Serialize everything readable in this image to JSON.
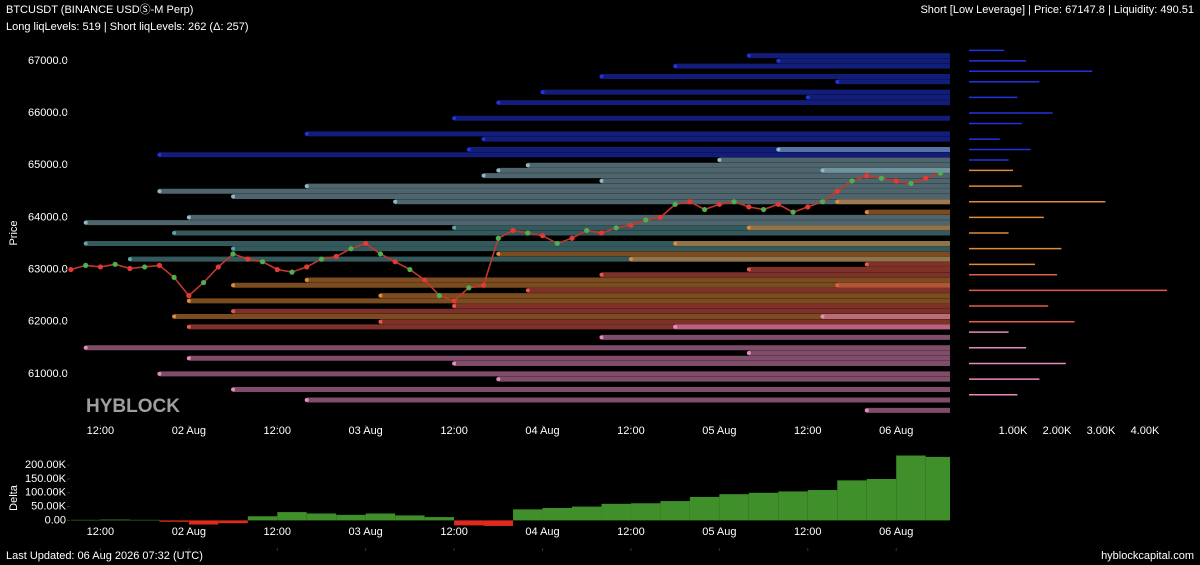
{
  "header": {
    "title": "BTCUSDT (BINANCE USDⓈ-M Perp)",
    "levels": "Long liqLevels: 519 | Short liqLevels: 262 (Δ: 257)",
    "status": "Short [Low Leverage] | Price: 67147.8 | Liquidity: 490.51"
  },
  "watermark": "HYBLOCK",
  "footer": {
    "updated": "Last Updated: 06 Aug 2026 07:32 (UTC)",
    "site": "hyblockcapital.com"
  },
  "chart_data": [
    {
      "type": "line",
      "y_label": "Price",
      "color": "#c0392b",
      "xlim": [
        7.6,
        127.3
      ],
      "ylim": [
        60020,
        67400
      ],
      "xticks": [
        {
          "value": 12,
          "label": "12:00"
        },
        {
          "value": 24,
          "label": "02 Aug"
        },
        {
          "value": 36,
          "label": "12:00"
        },
        {
          "value": 48,
          "label": "03 Aug"
        },
        {
          "value": 60,
          "label": "12:00"
        },
        {
          "value": 72,
          "label": "04 Aug"
        },
        {
          "value": 84,
          "label": "12:00"
        },
        {
          "value": 96,
          "label": "05 Aug"
        },
        {
          "value": 108,
          "label": "12:00"
        },
        {
          "value": 120,
          "label": "06 Aug"
        }
      ],
      "yticks": [
        {
          "value": 61000,
          "label": "61000.0"
        },
        {
          "value": 62000,
          "label": "62000.0"
        },
        {
          "value": 63000,
          "label": "63000.0"
        },
        {
          "value": 64000,
          "label": "64000.0"
        },
        {
          "value": 65000,
          "label": "65000.0"
        },
        {
          "value": 66000,
          "label": "66000.0"
        },
        {
          "value": 67000,
          "label": "67000.0"
        }
      ],
      "x": [
        8,
        10,
        12,
        14,
        16,
        18,
        20,
        22,
        24,
        26,
        28,
        30,
        32,
        34,
        36,
        38,
        40,
        42,
        44,
        46,
        48,
        50,
        52,
        54,
        56,
        58,
        60,
        62,
        64,
        66,
        68,
        70,
        72,
        74,
        76,
        78,
        80,
        82,
        84,
        86,
        88,
        90,
        92,
        94,
        96,
        98,
        100,
        102,
        104,
        106,
        108,
        110,
        112,
        114,
        116,
        118,
        120,
        122,
        124,
        126
      ],
      "values": [
        63000,
        63080,
        63050,
        63100,
        63020,
        63050,
        63080,
        62850,
        62500,
        62750,
        63050,
        63300,
        63200,
        63150,
        63000,
        62950,
        63050,
        63200,
        63250,
        63400,
        63500,
        63300,
        63150,
        63000,
        62800,
        62500,
        62400,
        62650,
        62700,
        63600,
        63750,
        63700,
        63650,
        63500,
        63600,
        63750,
        63700,
        63800,
        63850,
        63950,
        64000,
        64250,
        64300,
        64150,
        64250,
        64300,
        64200,
        64150,
        64250,
        64100,
        64200,
        64300,
        64500,
        64700,
        64800,
        64750,
        64700,
        64650,
        64750,
        64850
      ],
      "liq_levels": [
        {
          "color": "#2233dd",
          "start": [
            20,
            40,
            60,
            62,
            64,
            66,
            72,
            80,
            90,
            100,
            104,
            108,
            112
          ],
          "price": [
            65200,
            65600,
            65900,
            65300,
            65500,
            66200,
            66400,
            66700,
            66900,
            67100,
            67000,
            66300,
            66600
          ]
        },
        {
          "color": "#8fb8c8",
          "start": [
            10,
            20,
            24,
            30,
            40,
            52,
            64,
            66,
            70,
            80,
            96,
            104,
            110
          ],
          "price": [
            63900,
            64500,
            64000,
            64400,
            64600,
            64300,
            64800,
            64900,
            65000,
            64700,
            65100,
            65300,
            64900
          ]
        },
        {
          "color": "#5fa3a8",
          "start": [
            10,
            16,
            22,
            30,
            60
          ],
          "price": [
            63500,
            63200,
            63700,
            63400,
            63800
          ]
        },
        {
          "color": "#e08a3a",
          "start": [
            22,
            24,
            30,
            40,
            50,
            66,
            84,
            90,
            100,
            112,
            116
          ],
          "price": [
            62100,
            62400,
            62700,
            62800,
            62500,
            63300,
            63200,
            63500,
            63800,
            64300,
            64100
          ]
        },
        {
          "color": "#e55a4a",
          "start": [
            24,
            30,
            50,
            60,
            70,
            80,
            100,
            112,
            116
          ],
          "price": [
            61900,
            62200,
            62000,
            62300,
            62600,
            62900,
            63000,
            62700,
            63100
          ]
        },
        {
          "color": "#e88ac0",
          "start": [
            10,
            20,
            24,
            30,
            40,
            60,
            66,
            80,
            90,
            100,
            110,
            116
          ],
          "price": [
            61500,
            61000,
            61300,
            60700,
            60500,
            61200,
            60900,
            61700,
            61900,
            61400,
            62100,
            60300
          ]
        }
      ]
    },
    {
      "type": "hbar",
      "xlim": [
        0,
        5250
      ],
      "ylim": [
        60020,
        67400
      ],
      "xticks": [
        {
          "value": 1000,
          "label": "1.00K"
        },
        {
          "value": 2000,
          "label": "2.00K"
        },
        {
          "value": 3000,
          "label": "3.00K"
        },
        {
          "value": 4000,
          "label": "4.00K"
        }
      ],
      "groups": [
        {
          "color": "#2233dd",
          "price": [
            65100,
            65300,
            65500,
            65800,
            66000,
            66300,
            66600,
            66800,
            67000,
            67200
          ],
          "values": [
            900,
            1400,
            700,
            1200,
            1900,
            1100,
            1600,
            2800,
            1300,
            800
          ]
        },
        {
          "color": "#e08a3a",
          "price": [
            63100,
            63400,
            63700,
            64000,
            64300,
            64600,
            64900
          ],
          "values": [
            1500,
            2100,
            900,
            1700,
            3100,
            1200,
            1000
          ]
        },
        {
          "color": "#e55a4a",
          "price": [
            62000,
            62300,
            62600,
            62900
          ],
          "values": [
            2400,
            1800,
            4500,
            2000
          ]
        },
        {
          "color": "#e88ac0",
          "price": [
            60600,
            60900,
            61200,
            61500,
            61800
          ],
          "values": [
            1100,
            1600,
            2200,
            1300,
            900
          ]
        }
      ]
    },
    {
      "type": "bar",
      "y_label": "Delta",
      "pos_color": "#3f8f2a",
      "neg_color": "#e02a1e",
      "bar_width": 4,
      "xlim": [
        7.6,
        127.3
      ],
      "ylim": [
        -100000,
        255000
      ],
      "xticks": [
        {
          "value": 12,
          "label": "12:00"
        },
        {
          "value": 24,
          "label": "02 Aug"
        },
        {
          "value": 36,
          "label": "12:00"
        },
        {
          "value": 48,
          "label": "03 Aug"
        },
        {
          "value": 60,
          "label": "12:00"
        },
        {
          "value": 72,
          "label": "04 Aug"
        },
        {
          "value": 84,
          "label": "12:00"
        },
        {
          "value": 96,
          "label": "05 Aug"
        },
        {
          "value": 108,
          "label": "12:00"
        },
        {
          "value": 120,
          "label": "06 Aug"
        }
      ],
      "yticks": [
        {
          "value": 0,
          "label": "0.00"
        },
        {
          "value": 50000,
          "label": "50.00K"
        },
        {
          "value": 100000,
          "label": "100.00K"
        },
        {
          "value": 150000,
          "label": "150.00K"
        },
        {
          "value": 200000,
          "label": "200.00K"
        }
      ],
      "x": [
        8,
        12,
        16,
        20,
        24,
        28,
        32,
        36,
        40,
        44,
        48,
        52,
        56,
        60,
        64,
        68,
        72,
        76,
        80,
        84,
        88,
        92,
        96,
        100,
        104,
        108,
        112,
        116,
        120,
        124
      ],
      "values": [
        2000,
        3000,
        2000,
        -5000,
        -15000,
        -10000,
        15000,
        30000,
        25000,
        20000,
        25000,
        18000,
        12000,
        -18000,
        -20000,
        40000,
        45000,
        50000,
        60000,
        62000,
        70000,
        85000,
        95000,
        100000,
        105000,
        110000,
        145000,
        150000,
        235000,
        230000
      ]
    }
  ]
}
